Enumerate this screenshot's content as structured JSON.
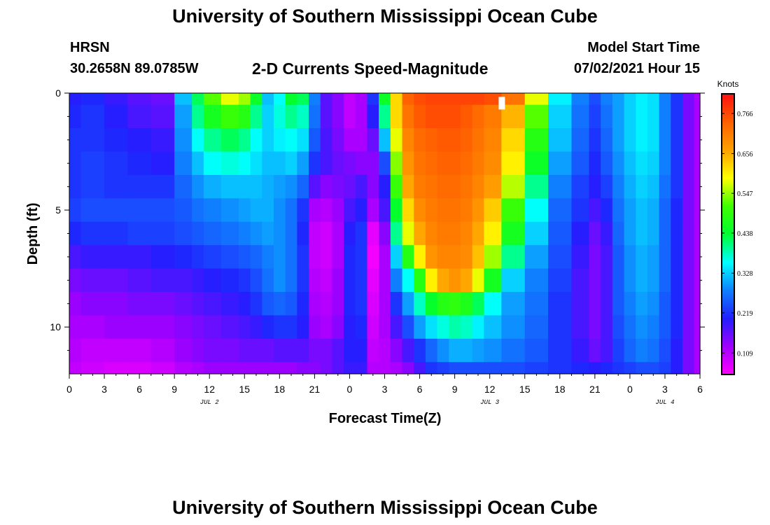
{
  "header": {
    "title_top": "University of Southern Mississippi Ocean Cube",
    "title_bottom": "University of Southern Mississippi Ocean Cube",
    "station": "HRSN",
    "coordinates": "30.2658N  89.0785W",
    "plot_title": "2-D Currents Speed-Magnitude",
    "model_label": "Model Start Time",
    "model_time": "07/02/2021 Hour 15"
  },
  "chart_data": {
    "type": "heatmap",
    "title": "2-D Currents Speed-Magnitude",
    "xlabel": "Forecast Time(Z)",
    "ylabel": "Depth (ft)",
    "x_hours_range": [
      0,
      54
    ],
    "x_tick_hours": [
      0,
      3,
      6,
      9,
      12,
      15,
      18,
      21,
      24,
      27,
      30,
      33,
      36,
      39,
      42,
      45,
      48,
      51,
      54
    ],
    "x_tick_labels": [
      "0",
      "3",
      "6",
      "9",
      "12",
      "15",
      "18",
      "21",
      "0",
      "3",
      "6",
      "9",
      "12",
      "15",
      "18",
      "21",
      "0",
      "3",
      "6"
    ],
    "date_labels": [
      {
        "text": "JUL 2",
        "hour": 12
      },
      {
        "text": "JUL 3",
        "hour": 36
      },
      {
        "text": "JUL 4",
        "hour": 51
      }
    ],
    "y_range_ft": [
      0,
      12
    ],
    "y_tick_values": [
      0,
      5,
      10
    ],
    "y_tick_labels": [
      "0",
      "5",
      "10"
    ],
    "colorbar": {
      "unit_label": "Knots",
      "range": [
        0.05,
        0.82
      ],
      "tick_values": [
        0.109,
        0.219,
        0.328,
        0.438,
        0.547,
        0.656,
        0.766
      ],
      "tick_labels": [
        "0.109",
        "0.219",
        "0.328",
        "0.438",
        "0.547",
        "0.656",
        "0.766"
      ],
      "colors": [
        "#ff00ff",
        "#a000ff",
        "#2020ff",
        "#1080ff",
        "#00ffff",
        "#00ff30",
        "#40ff00",
        "#ffff00",
        "#ffa000",
        "#ff6000",
        "#ff1010"
      ]
    },
    "depth_levels_ft": [
      0,
      1,
      2,
      3,
      4,
      5,
      6,
      7,
      8,
      9,
      10,
      11,
      12
    ],
    "time_hours": [
      0,
      2,
      4,
      6,
      8,
      10,
      11,
      12,
      14,
      15,
      16,
      17,
      18,
      19,
      20,
      21,
      22,
      23,
      24,
      25,
      26,
      27,
      28,
      29,
      30,
      31,
      32,
      33,
      34,
      35,
      36,
      38,
      40,
      42,
      44,
      45,
      46,
      47,
      48,
      49,
      50,
      51,
      52,
      53,
      54
    ],
    "speed_knots": [
      [
        0.2,
        0.21,
        0.19,
        0.17,
        0.16,
        0.32,
        0.42,
        0.52,
        0.58,
        0.55,
        0.45,
        0.32,
        0.36,
        0.44,
        0.42,
        0.28,
        0.17,
        0.14,
        0.1,
        0.12,
        0.22,
        0.45,
        0.62,
        0.74,
        0.76,
        0.77,
        0.77,
        0.77,
        0.77,
        0.77,
        0.76,
        0.72,
        0.58,
        0.35,
        0.28,
        0.24,
        0.28,
        0.3,
        0.33,
        0.35,
        0.34,
        0.28,
        0.22,
        0.15,
        0.12
      ],
      [
        0.21,
        0.22,
        0.2,
        0.18,
        0.17,
        0.3,
        0.4,
        0.46,
        0.5,
        0.48,
        0.4,
        0.33,
        0.37,
        0.4,
        0.38,
        0.27,
        0.17,
        0.14,
        0.1,
        0.12,
        0.2,
        0.4,
        0.62,
        0.72,
        0.75,
        0.76,
        0.76,
        0.76,
        0.75,
        0.73,
        0.71,
        0.65,
        0.52,
        0.33,
        0.27,
        0.23,
        0.27,
        0.3,
        0.33,
        0.35,
        0.34,
        0.28,
        0.22,
        0.15,
        0.12
      ],
      [
        0.22,
        0.22,
        0.21,
        0.2,
        0.19,
        0.29,
        0.36,
        0.4,
        0.42,
        0.4,
        0.36,
        0.33,
        0.35,
        0.36,
        0.34,
        0.25,
        0.18,
        0.15,
        0.12,
        0.12,
        0.16,
        0.32,
        0.58,
        0.7,
        0.73,
        0.74,
        0.75,
        0.75,
        0.74,
        0.72,
        0.7,
        0.62,
        0.48,
        0.32,
        0.26,
        0.22,
        0.26,
        0.3,
        0.33,
        0.35,
        0.34,
        0.28,
        0.22,
        0.15,
        0.12
      ],
      [
        0.22,
        0.23,
        0.22,
        0.21,
        0.2,
        0.28,
        0.32,
        0.36,
        0.37,
        0.36,
        0.34,
        0.32,
        0.32,
        0.33,
        0.3,
        0.22,
        0.18,
        0.16,
        0.15,
        0.14,
        0.14,
        0.24,
        0.54,
        0.68,
        0.72,
        0.73,
        0.74,
        0.74,
        0.73,
        0.71,
        0.69,
        0.6,
        0.45,
        0.3,
        0.25,
        0.21,
        0.25,
        0.29,
        0.32,
        0.34,
        0.33,
        0.28,
        0.22,
        0.15,
        0.12
      ],
      [
        0.22,
        0.23,
        0.22,
        0.22,
        0.22,
        0.26,
        0.29,
        0.31,
        0.32,
        0.32,
        0.32,
        0.31,
        0.3,
        0.29,
        0.26,
        0.17,
        0.14,
        0.15,
        0.16,
        0.18,
        0.14,
        0.2,
        0.5,
        0.66,
        0.71,
        0.72,
        0.73,
        0.73,
        0.72,
        0.7,
        0.67,
        0.56,
        0.4,
        0.28,
        0.23,
        0.2,
        0.23,
        0.28,
        0.31,
        0.33,
        0.32,
        0.27,
        0.22,
        0.15,
        0.12
      ],
      [
        0.23,
        0.24,
        0.24,
        0.24,
        0.24,
        0.25,
        0.27,
        0.28,
        0.29,
        0.3,
        0.31,
        0.31,
        0.29,
        0.27,
        0.22,
        0.12,
        0.11,
        0.13,
        0.18,
        0.2,
        0.12,
        0.18,
        0.44,
        0.62,
        0.69,
        0.71,
        0.72,
        0.72,
        0.71,
        0.68,
        0.63,
        0.5,
        0.36,
        0.26,
        0.22,
        0.18,
        0.21,
        0.27,
        0.3,
        0.32,
        0.31,
        0.26,
        0.21,
        0.15,
        0.12
      ],
      [
        0.21,
        0.22,
        0.22,
        0.23,
        0.23,
        0.24,
        0.25,
        0.26,
        0.27,
        0.28,
        0.29,
        0.3,
        0.29,
        0.27,
        0.21,
        0.1,
        0.09,
        0.12,
        0.2,
        0.22,
        0.07,
        0.14,
        0.4,
        0.58,
        0.66,
        0.7,
        0.71,
        0.71,
        0.7,
        0.66,
        0.6,
        0.46,
        0.33,
        0.25,
        0.2,
        0.16,
        0.19,
        0.26,
        0.3,
        0.32,
        0.31,
        0.26,
        0.21,
        0.15,
        0.12
      ],
      [
        0.18,
        0.19,
        0.19,
        0.19,
        0.2,
        0.21,
        0.22,
        0.23,
        0.24,
        0.25,
        0.26,
        0.28,
        0.29,
        0.27,
        0.22,
        0.1,
        0.09,
        0.12,
        0.21,
        0.22,
        0.06,
        0.12,
        0.33,
        0.48,
        0.6,
        0.68,
        0.7,
        0.7,
        0.69,
        0.64,
        0.55,
        0.4,
        0.3,
        0.24,
        0.19,
        0.15,
        0.18,
        0.25,
        0.29,
        0.31,
        0.3,
        0.26,
        0.21,
        0.15,
        0.12
      ],
      [
        0.15,
        0.16,
        0.16,
        0.17,
        0.18,
        0.18,
        0.19,
        0.2,
        0.21,
        0.22,
        0.24,
        0.27,
        0.29,
        0.27,
        0.22,
        0.11,
        0.1,
        0.13,
        0.21,
        0.22,
        0.07,
        0.12,
        0.28,
        0.36,
        0.48,
        0.6,
        0.66,
        0.68,
        0.66,
        0.58,
        0.46,
        0.33,
        0.28,
        0.23,
        0.18,
        0.15,
        0.18,
        0.25,
        0.29,
        0.31,
        0.3,
        0.26,
        0.21,
        0.15,
        0.12
      ],
      [
        0.13,
        0.14,
        0.14,
        0.15,
        0.15,
        0.16,
        0.17,
        0.18,
        0.19,
        0.2,
        0.22,
        0.25,
        0.26,
        0.25,
        0.21,
        0.12,
        0.11,
        0.13,
        0.21,
        0.22,
        0.08,
        0.12,
        0.22,
        0.3,
        0.38,
        0.44,
        0.48,
        0.49,
        0.47,
        0.42,
        0.36,
        0.3,
        0.27,
        0.22,
        0.18,
        0.15,
        0.18,
        0.25,
        0.28,
        0.3,
        0.29,
        0.25,
        0.21,
        0.15,
        0.12
      ],
      [
        0.12,
        0.12,
        0.13,
        0.13,
        0.13,
        0.14,
        0.15,
        0.16,
        0.17,
        0.18,
        0.19,
        0.21,
        0.22,
        0.22,
        0.2,
        0.13,
        0.12,
        0.14,
        0.2,
        0.21,
        0.09,
        0.12,
        0.18,
        0.24,
        0.3,
        0.34,
        0.37,
        0.39,
        0.38,
        0.35,
        0.32,
        0.29,
        0.26,
        0.22,
        0.18,
        0.15,
        0.18,
        0.24,
        0.27,
        0.29,
        0.28,
        0.25,
        0.21,
        0.15,
        0.12
      ],
      [
        0.11,
        0.1,
        0.1,
        0.1,
        0.11,
        0.13,
        0.14,
        0.15,
        0.15,
        0.16,
        0.16,
        0.16,
        0.17,
        0.17,
        0.17,
        0.15,
        0.15,
        0.17,
        0.2,
        0.2,
        0.1,
        0.11,
        0.14,
        0.18,
        0.22,
        0.26,
        0.29,
        0.31,
        0.31,
        0.3,
        0.29,
        0.27,
        0.25,
        0.22,
        0.19,
        0.16,
        0.18,
        0.23,
        0.26,
        0.28,
        0.27,
        0.24,
        0.2,
        0.15,
        0.12
      ],
      [
        0.1,
        0.09,
        0.08,
        0.08,
        0.09,
        0.11,
        0.12,
        0.13,
        0.13,
        0.13,
        0.13,
        0.13,
        0.13,
        0.13,
        0.14,
        0.14,
        0.15,
        0.17,
        0.19,
        0.19,
        0.11,
        0.11,
        0.12,
        0.14,
        0.18,
        0.22,
        0.23,
        0.24,
        0.24,
        0.24,
        0.24,
        0.24,
        0.23,
        0.22,
        0.21,
        0.2,
        0.21,
        0.22,
        0.23,
        0.24,
        0.24,
        0.23,
        0.2,
        0.15,
        0.12
      ]
    ],
    "marker": {
      "hour": 37,
      "depth_ft": 0.25
    }
  }
}
